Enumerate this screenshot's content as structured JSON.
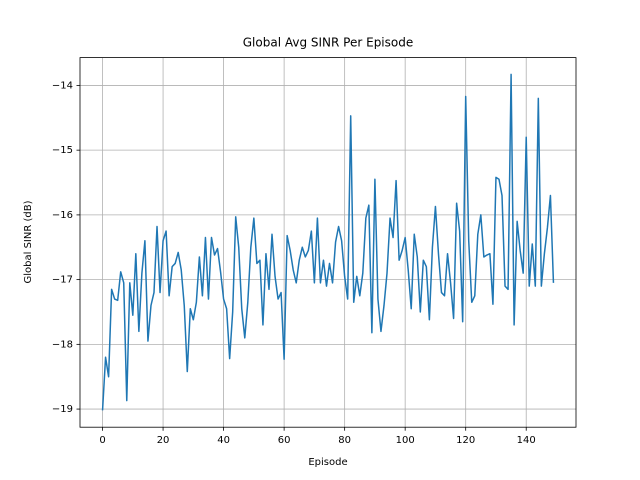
{
  "chart_data": {
    "type": "line",
    "title": "Global Avg SINR Per Episode",
    "x_label": "Episode",
    "y_label": "Global SINR (dB)",
    "x": [
      0,
      1,
      2,
      3,
      4,
      5,
      6,
      7,
      8,
      9,
      10,
      11,
      12,
      13,
      14,
      15,
      16,
      17,
      18,
      19,
      20,
      21,
      22,
      23,
      24,
      25,
      26,
      27,
      28,
      29,
      30,
      31,
      32,
      33,
      34,
      35,
      36,
      37,
      38,
      39,
      40,
      41,
      42,
      43,
      44,
      45,
      46,
      47,
      48,
      49,
      50,
      51,
      52,
      53,
      54,
      55,
      56,
      57,
      58,
      59,
      60,
      61,
      62,
      63,
      64,
      65,
      66,
      67,
      68,
      69,
      70,
      71,
      72,
      73,
      74,
      75,
      76,
      77,
      78,
      79,
      80,
      81,
      82,
      83,
      84,
      85,
      86,
      87,
      88,
      89,
      90,
      91,
      92,
      93,
      94,
      95,
      96,
      97,
      98,
      99,
      100,
      101,
      102,
      103,
      104,
      105,
      106,
      107,
      108,
      109,
      110,
      111,
      112,
      113,
      114,
      115,
      116,
      117,
      118,
      119,
      120,
      121,
      122,
      123,
      124,
      125,
      126,
      127,
      128,
      129,
      130,
      131,
      132,
      133,
      134,
      135,
      136,
      137,
      138,
      139,
      140,
      141,
      142,
      143,
      144,
      145,
      146,
      147,
      148,
      149
    ],
    "series": [
      {
        "name": "Global SINR",
        "color": "#1f77b4",
        "values": [
          -19.02,
          -18.2,
          -18.5,
          -17.15,
          -17.3,
          -17.32,
          -16.88,
          -17.05,
          -18.87,
          -17.05,
          -17.55,
          -16.6,
          -17.8,
          -16.9,
          -16.4,
          -17.95,
          -17.4,
          -17.2,
          -16.18,
          -17.2,
          -16.4,
          -16.25,
          -17.25,
          -16.8,
          -16.75,
          -16.58,
          -16.85,
          -17.4,
          -18.42,
          -17.45,
          -17.62,
          -17.35,
          -16.65,
          -17.25,
          -16.35,
          -17.3,
          -16.35,
          -16.62,
          -16.52,
          -16.88,
          -17.3,
          -17.45,
          -18.22,
          -17.5,
          -16.03,
          -16.5,
          -17.45,
          -17.9,
          -17.35,
          -16.5,
          -16.05,
          -16.75,
          -16.7,
          -17.7,
          -16.6,
          -17.15,
          -16.3,
          -16.95,
          -17.3,
          -17.2,
          -18.23,
          -16.32,
          -16.55,
          -16.85,
          -17.05,
          -16.7,
          -16.5,
          -16.65,
          -16.55,
          -16.25,
          -17.05,
          -16.05,
          -17.05,
          -16.7,
          -17.1,
          -16.75,
          -17.05,
          -16.42,
          -16.18,
          -16.4,
          -16.95,
          -17.3,
          -14.47,
          -17.35,
          -16.95,
          -17.25,
          -16.9,
          -16.05,
          -15.85,
          -17.82,
          -15.45,
          -17.3,
          -17.8,
          -17.4,
          -16.9,
          -16.05,
          -16.35,
          -15.47,
          -16.7,
          -16.55,
          -16.35,
          -16.85,
          -17.45,
          -16.3,
          -16.65,
          -17.5,
          -16.7,
          -16.8,
          -17.62,
          -16.5,
          -15.87,
          -16.6,
          -17.2,
          -17.25,
          -16.6,
          -17.05,
          -17.6,
          -15.82,
          -16.25,
          -17.65,
          -14.17,
          -16.4,
          -17.35,
          -17.25,
          -16.3,
          -16.0,
          -16.65,
          -16.62,
          -16.6,
          -17.38,
          -15.42,
          -15.45,
          -15.7,
          -17.1,
          -17.15,
          -13.83,
          -17.7,
          -16.1,
          -16.55,
          -16.9,
          -14.8,
          -17.1,
          -16.45,
          -17.1,
          -14.2,
          -17.1,
          -16.6,
          -16.2,
          -15.7,
          -17.05
        ]
      }
    ],
    "xlim": [
      -7.45,
      156.45
    ],
    "ylim": [
      -19.28,
      -13.57
    ],
    "xticks": [
      0,
      20,
      40,
      60,
      80,
      100,
      120,
      140
    ],
    "yticks": [
      {
        "value": -19,
        "label": "−19"
      },
      {
        "value": -18,
        "label": "−18"
      },
      {
        "value": -17,
        "label": "−17"
      },
      {
        "value": -16,
        "label": "−16"
      },
      {
        "value": -15,
        "label": "−15"
      },
      {
        "value": -14,
        "label": "−14"
      }
    ],
    "grid": true
  }
}
